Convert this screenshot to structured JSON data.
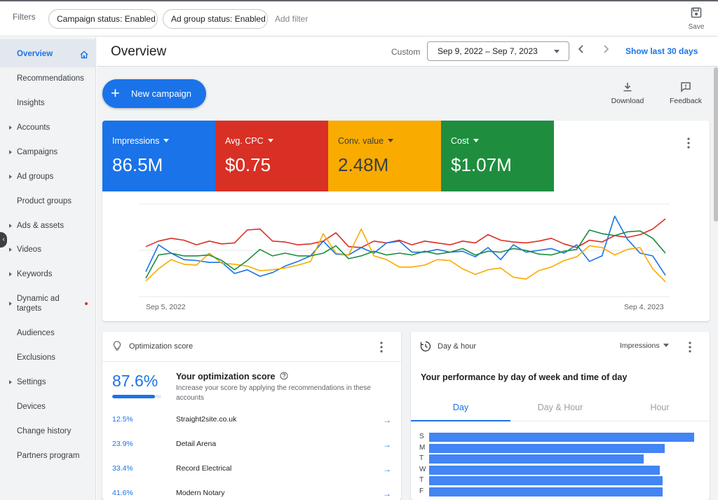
{
  "filterbar": {
    "label": "Filters",
    "chips": [
      "Campaign status: Enabled",
      "Ad group status: Enabled"
    ],
    "add_filter": "Add filter",
    "save_label": "Save"
  },
  "sidebar": {
    "items": [
      {
        "label": "Overview",
        "active": true
      },
      {
        "label": "Recommendations"
      },
      {
        "label": "Insights"
      },
      {
        "label": "Accounts",
        "expandable": true
      },
      {
        "label": "Campaigns",
        "expandable": true
      },
      {
        "label": "Ad groups",
        "expandable": true
      },
      {
        "label": "Product groups"
      },
      {
        "label": "Ads & assets",
        "expandable": true
      },
      {
        "label": "Videos",
        "expandable": true
      },
      {
        "label": "Keywords",
        "expandable": true
      },
      {
        "label": "Dynamic ad targets",
        "expandable": true,
        "notification": true
      },
      {
        "label": "Audiences"
      },
      {
        "label": "Exclusions"
      },
      {
        "label": "Settings",
        "expandable": true
      },
      {
        "label": "Devices"
      },
      {
        "label": "Change history"
      },
      {
        "label": "Partners program"
      }
    ]
  },
  "header": {
    "title": "Overview",
    "range_label": "Custom",
    "date_range": "Sep 9, 2022 – Sep 7, 2023",
    "show_last": "Show last 30 days"
  },
  "toolbar": {
    "new_campaign": "New campaign",
    "download": "Download",
    "feedback": "Feedback"
  },
  "metrics": [
    {
      "label": "Impressions",
      "value": "86.5M",
      "color": "#1a73e8"
    },
    {
      "label": "Avg. CPC",
      "value": "$0.75",
      "color": "#d93025"
    },
    {
      "label": "Conv. value",
      "value": "2.48M",
      "color": "#f9ab00"
    },
    {
      "label": "Cost",
      "value": "$1.07M",
      "color": "#1e8e3e"
    }
  ],
  "chart_data": {
    "type": "line",
    "x_start_label": "Sep 5, 2022",
    "x_end_label": "Sep 4, 2023",
    "grid": true,
    "series": [
      {
        "name": "Avg. CPC",
        "color": "#d93025",
        "values": [
          0.54,
          0.6,
          0.63,
          0.61,
          0.56,
          0.6,
          0.57,
          0.58,
          0.72,
          0.73,
          0.6,
          0.59,
          0.56,
          0.57,
          0.6,
          0.69,
          0.54,
          0.53,
          0.6,
          0.58,
          0.61,
          0.56,
          0.6,
          0.58,
          0.56,
          0.6,
          0.58,
          0.67,
          0.61,
          0.59,
          0.58,
          0.6,
          0.63,
          0.57,
          0.53,
          0.61,
          0.59,
          0.66,
          0.64,
          0.67,
          0.73,
          0.84
        ]
      },
      {
        "name": "Impressions",
        "color": "#1a73e8",
        "values": [
          0.27,
          0.56,
          0.47,
          0.4,
          0.39,
          0.37,
          0.37,
          0.25,
          0.29,
          0.22,
          0.26,
          0.33,
          0.38,
          0.44,
          0.6,
          0.46,
          0.45,
          0.53,
          0.47,
          0.58,
          0.6,
          0.48,
          0.48,
          0.51,
          0.48,
          0.49,
          0.43,
          0.53,
          0.4,
          0.56,
          0.48,
          0.5,
          0.52,
          0.47,
          0.56,
          0.38,
          0.44,
          0.87,
          0.62,
          0.47,
          0.44,
          0.23
        ]
      },
      {
        "name": "Conv. value",
        "color": "#f9ab00",
        "values": [
          0.17,
          0.3,
          0.4,
          0.35,
          0.34,
          0.47,
          0.36,
          0.35,
          0.33,
          0.28,
          0.29,
          0.31,
          0.34,
          0.38,
          0.68,
          0.47,
          0.45,
          0.73,
          0.44,
          0.4,
          0.32,
          0.32,
          0.34,
          0.4,
          0.39,
          0.3,
          0.24,
          0.29,
          0.31,
          0.21,
          0.19,
          0.28,
          0.32,
          0.39,
          0.43,
          0.55,
          0.53,
          0.45,
          0.51,
          0.53,
          0.3,
          0.16
        ]
      },
      {
        "name": "Cost",
        "color": "#1e8e3e",
        "values": [
          0.2,
          0.45,
          0.47,
          0.44,
          0.44,
          0.45,
          0.39,
          0.29,
          0.39,
          0.51,
          0.44,
          0.47,
          0.44,
          0.44,
          0.47,
          0.55,
          0.41,
          0.44,
          0.49,
          0.45,
          0.47,
          0.45,
          0.49,
          0.46,
          0.48,
          0.52,
          0.45,
          0.49,
          0.48,
          0.52,
          0.5,
          0.46,
          0.45,
          0.49,
          0.51,
          0.72,
          0.68,
          0.66,
          0.7,
          0.71,
          0.63,
          0.47
        ]
      }
    ]
  },
  "optimization": {
    "title": "Optimization score",
    "score": "87.6%",
    "score_fraction": 0.876,
    "heading": "Your optimization score",
    "description": "Increase your score by applying the recommendations in these accounts",
    "rows": [
      {
        "pct": "12.5%",
        "name": "Straight2site.co.uk"
      },
      {
        "pct": "23.9%",
        "name": "Detail Arena"
      },
      {
        "pct": "33.4%",
        "name": "Record Electrical"
      },
      {
        "pct": "41.6%",
        "name": "Modern Notary"
      }
    ]
  },
  "day_hour": {
    "title": "Day & hour",
    "metric": "Impressions",
    "heading": "Your performance by day of week and time of day",
    "tabs": [
      "Day",
      "Day & Hour",
      "Hour"
    ],
    "days": [
      {
        "label": "S",
        "value": 1.0
      },
      {
        "label": "M",
        "value": 0.89
      },
      {
        "label": "T",
        "value": 0.81
      },
      {
        "label": "W",
        "value": 0.87
      },
      {
        "label": "T",
        "value": 0.88
      },
      {
        "label": "F",
        "value": 0.88
      }
    ]
  }
}
